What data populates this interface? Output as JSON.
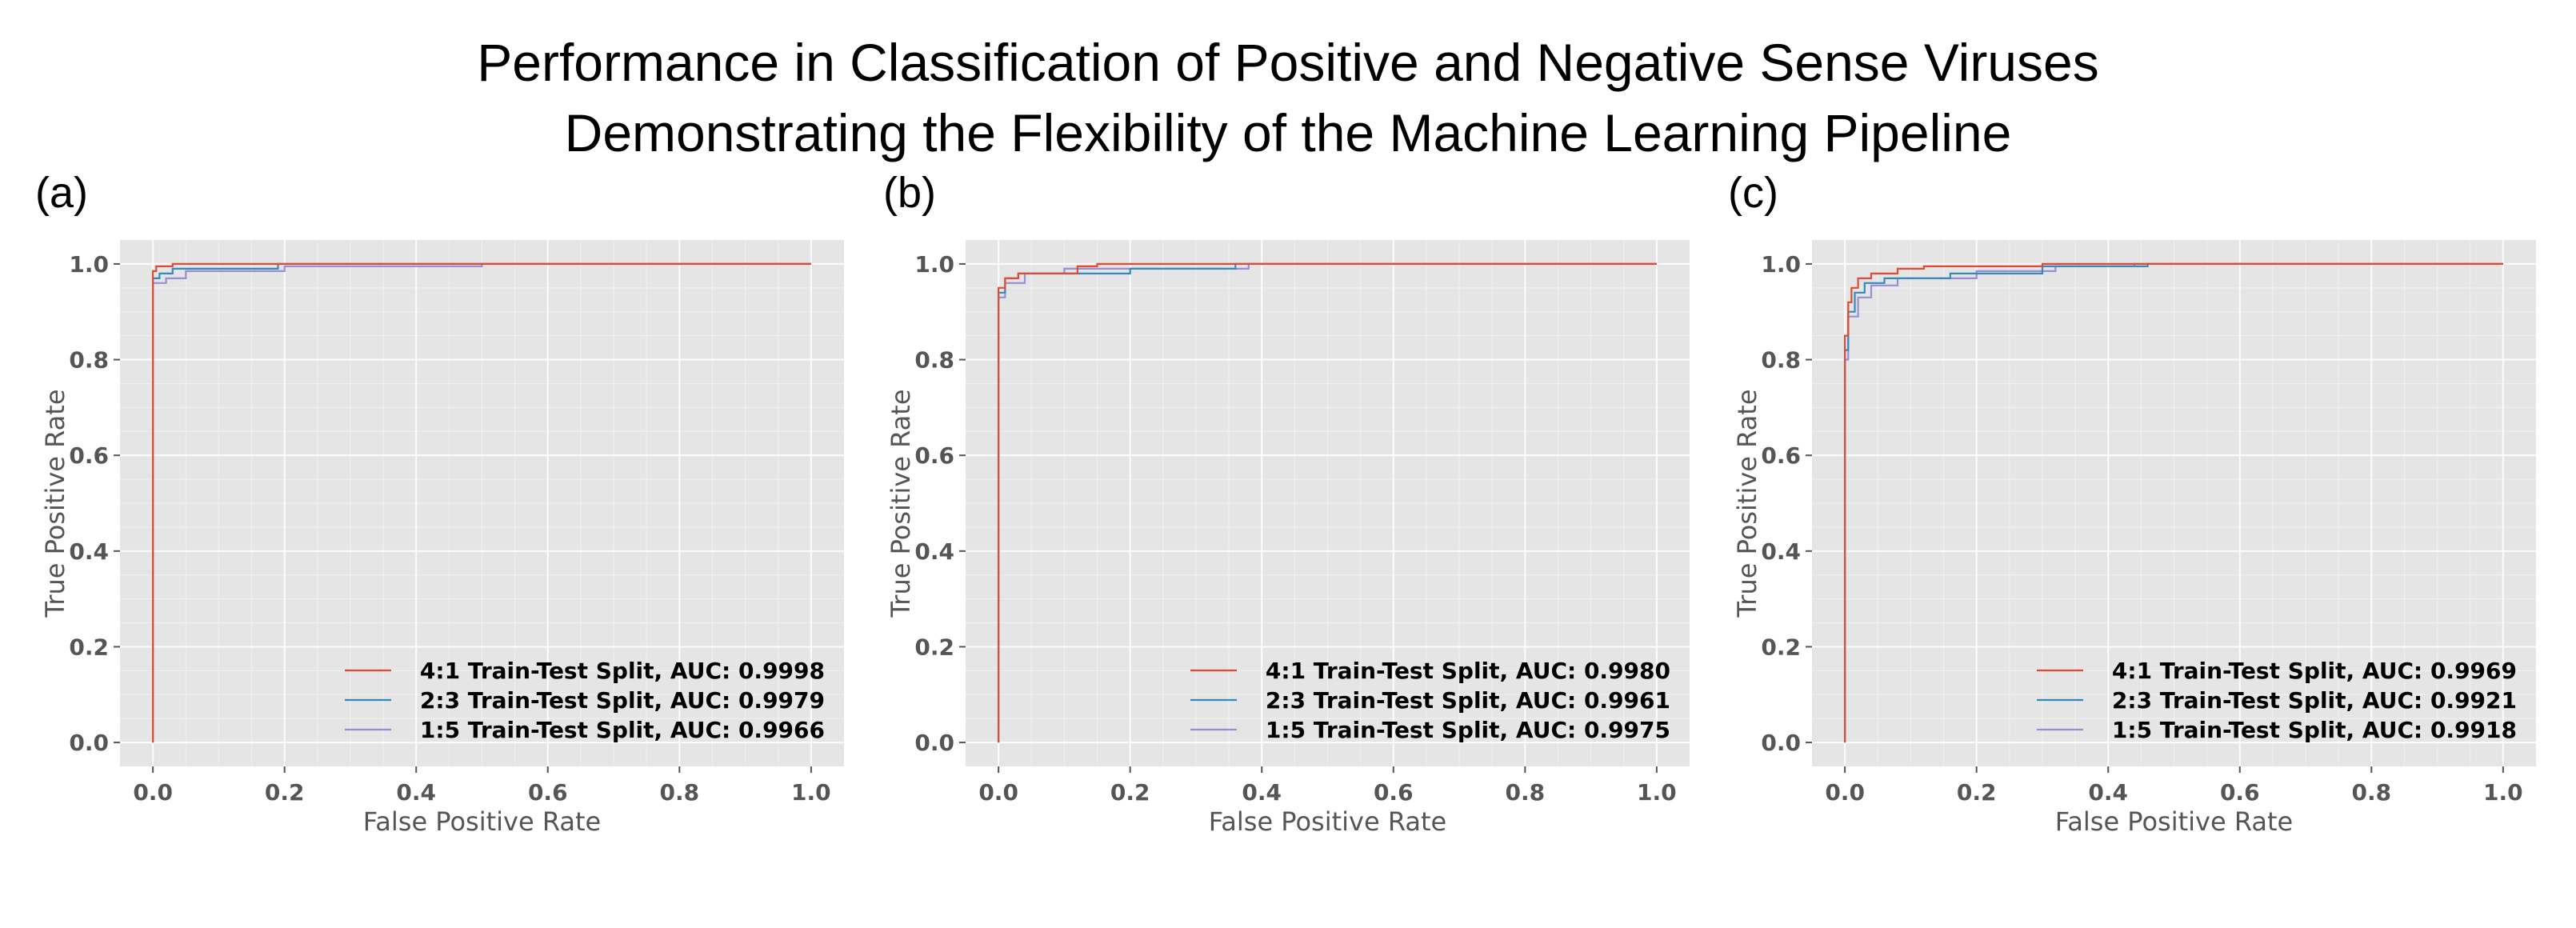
{
  "title_line1": "Performance in Classification of Positive and Negative Sense Viruses",
  "title_line2": "Demonstrating the Flexibility of the Machine Learning Pipeline",
  "colors": {
    "plot_bg": "#e5e5e5",
    "split_4_1": "#e24a33",
    "split_2_3": "#348abd",
    "split_1_5": "#988ed5",
    "axis_text": "#555555"
  },
  "chart_data": [
    {
      "panel_label": "(a)",
      "type": "line",
      "xlabel": "False Positive Rate",
      "ylabel": "True Positive Rate",
      "xlim": [
        -0.05,
        1.05
      ],
      "ylim": [
        -0.05,
        1.05
      ],
      "xticks": [
        "0.0",
        "0.2",
        "0.4",
        "0.6",
        "0.8",
        "1.0"
      ],
      "yticks": [
        "0.0",
        "0.2",
        "0.4",
        "0.6",
        "0.8",
        "1.0"
      ],
      "grid": true,
      "legend_position": "bottom-right",
      "series": [
        {
          "name": "4:1 Train-Test Split, AUC: 0.9998",
          "x": [
            0,
            0,
            0.005,
            0.005,
            0.03,
            0.03,
            1.0
          ],
          "y": [
            0,
            0.985,
            0.985,
            0.995,
            0.995,
            1.0,
            1.0
          ]
        },
        {
          "name": "2:3 Train-Test Split, AUC: 0.9979",
          "x": [
            0,
            0,
            0.01,
            0.01,
            0.03,
            0.03,
            0.19,
            0.19,
            1.0
          ],
          "y": [
            0,
            0.97,
            0.97,
            0.98,
            0.98,
            0.99,
            0.99,
            1.0,
            1.0
          ]
        },
        {
          "name": "1:5 Train-Test Split, AUC: 0.9966",
          "x": [
            0,
            0,
            0.02,
            0.02,
            0.05,
            0.05,
            0.2,
            0.2,
            0.5,
            0.5,
            1.0
          ],
          "y": [
            0,
            0.96,
            0.96,
            0.97,
            0.97,
            0.985,
            0.985,
            0.995,
            0.995,
            1.0,
            1.0
          ]
        }
      ]
    },
    {
      "panel_label": "(b)",
      "type": "line",
      "xlabel": "False Positive Rate",
      "ylabel": "True Positive Rate",
      "xlim": [
        -0.05,
        1.05
      ],
      "ylim": [
        -0.05,
        1.05
      ],
      "xticks": [
        "0.0",
        "0.2",
        "0.4",
        "0.6",
        "0.8",
        "1.0"
      ],
      "yticks": [
        "0.0",
        "0.2",
        "0.4",
        "0.6",
        "0.8",
        "1.0"
      ],
      "grid": true,
      "legend_position": "bottom-right",
      "series": [
        {
          "name": "4:1 Train-Test Split, AUC: 0.9980",
          "x": [
            0,
            0,
            0.01,
            0.01,
            0.03,
            0.03,
            0.12,
            0.12,
            0.15,
            0.15,
            1.0
          ],
          "y": [
            0,
            0.95,
            0.95,
            0.97,
            0.97,
            0.98,
            0.98,
            0.995,
            0.995,
            1.0,
            1.0
          ]
        },
        {
          "name": "2:3 Train-Test Split, AUC: 0.9961",
          "x": [
            0,
            0,
            0.01,
            0.01,
            0.03,
            0.03,
            0.2,
            0.2,
            0.36,
            0.36,
            1.0
          ],
          "y": [
            0,
            0.94,
            0.94,
            0.97,
            0.97,
            0.98,
            0.98,
            0.99,
            0.99,
            1.0,
            1.0
          ]
        },
        {
          "name": "1:5 Train-Test Split, AUC: 0.9975",
          "x": [
            0,
            0,
            0.01,
            0.01,
            0.04,
            0.04,
            0.1,
            0.1,
            0.38,
            0.38,
            1.0
          ],
          "y": [
            0,
            0.93,
            0.93,
            0.96,
            0.96,
            0.98,
            0.98,
            0.99,
            0.99,
            1.0,
            1.0
          ]
        }
      ]
    },
    {
      "panel_label": "(c)",
      "type": "line",
      "xlabel": "False Positive Rate",
      "ylabel": "True Positive Rate",
      "xlim": [
        -0.05,
        1.05
      ],
      "ylim": [
        -0.05,
        1.05
      ],
      "xticks": [
        "0.0",
        "0.2",
        "0.4",
        "0.6",
        "0.8",
        "1.0"
      ],
      "yticks": [
        "0.0",
        "0.2",
        "0.4",
        "0.6",
        "0.8",
        "1.0"
      ],
      "grid": true,
      "legend_position": "bottom-right",
      "series": [
        {
          "name": "4:1 Train-Test Split, AUC: 0.9969",
          "x": [
            0,
            0,
            0.005,
            0.005,
            0.01,
            0.01,
            0.02,
            0.02,
            0.04,
            0.04,
            0.08,
            0.08,
            0.12,
            0.12,
            0.3,
            0.3,
            1.0
          ],
          "y": [
            0,
            0.85,
            0.85,
            0.92,
            0.92,
            0.95,
            0.95,
            0.97,
            0.97,
            0.98,
            0.98,
            0.99,
            0.99,
            0.995,
            0.995,
            1.0,
            1.0
          ]
        },
        {
          "name": "2:3 Train-Test Split, AUC: 0.9921",
          "x": [
            0,
            0,
            0.005,
            0.005,
            0.015,
            0.015,
            0.03,
            0.03,
            0.06,
            0.06,
            0.16,
            0.16,
            0.3,
            0.3,
            0.46,
            0.46,
            1.0
          ],
          "y": [
            0,
            0.82,
            0.82,
            0.9,
            0.9,
            0.94,
            0.94,
            0.96,
            0.96,
            0.97,
            0.97,
            0.98,
            0.98,
            0.995,
            0.995,
            1.0,
            1.0
          ]
        },
        {
          "name": "1:5 Train-Test Split, AUC: 0.9918",
          "x": [
            0,
            0,
            0.005,
            0.005,
            0.02,
            0.02,
            0.04,
            0.04,
            0.08,
            0.08,
            0.2,
            0.2,
            0.32,
            0.32,
            0.44,
            0.44,
            1.0
          ],
          "y": [
            0,
            0.8,
            0.8,
            0.89,
            0.89,
            0.93,
            0.93,
            0.955,
            0.955,
            0.97,
            0.97,
            0.985,
            0.985,
            0.995,
            0.995,
            1.0,
            1.0
          ]
        }
      ]
    }
  ]
}
